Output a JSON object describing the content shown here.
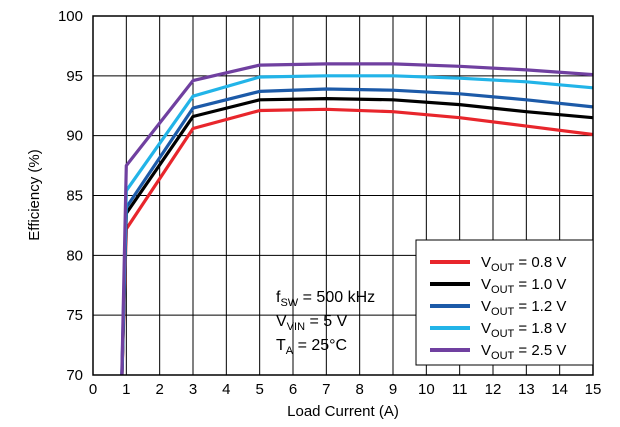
{
  "chart_data": {
    "type": "line",
    "xlabel": "Load Current (A)",
    "ylabel": "Efficiency (%)",
    "xlim": [
      0,
      15
    ],
    "ylim": [
      70,
      100
    ],
    "xticks": [
      "0",
      "1",
      "2",
      "3",
      "4",
      "5",
      "6",
      "7",
      "8",
      "9",
      "10",
      "11",
      "12",
      "13",
      "14",
      "15"
    ],
    "yticks": [
      "70",
      "75",
      "80",
      "85",
      "90",
      "95",
      "100"
    ],
    "grid": true,
    "legend_position": "bottom-right",
    "annotation": {
      "fsw": {
        "main": "f",
        "sub": "SW",
        "rest": " = 500 kHz"
      },
      "vvin": {
        "main": "V",
        "sub": "VIN",
        "rest": " = 5 V"
      },
      "ta": {
        "main": "T",
        "sub": "A",
        "rest": " = 25°C"
      }
    },
    "series": [
      {
        "name": "VOUT = 0.8 V",
        "label_main": "V",
        "label_sub": "OUT",
        "label_rest": " = 0.8 V",
        "color": "#e8262c",
        "x": [
          0.85,
          1,
          3,
          5,
          7,
          9,
          11,
          13,
          15
        ],
        "y": [
          68,
          82.2,
          90.6,
          92.1,
          92.2,
          92.0,
          91.5,
          90.8,
          90.1
        ]
      },
      {
        "name": "VOUT = 1.0 V",
        "label_main": "V",
        "label_sub": "OUT",
        "label_rest": " = 1.0 V",
        "color": "#000000",
        "x": [
          0.85,
          1,
          3,
          5,
          7,
          9,
          11,
          13,
          15
        ],
        "y": [
          68,
          83.5,
          91.6,
          93.0,
          93.1,
          93.0,
          92.6,
          92.0,
          91.5
        ]
      },
      {
        "name": "VOUT = 1.2 V",
        "label_main": "V",
        "label_sub": "OUT",
        "label_rest": " = 1.2 V",
        "color": "#1c5aa8",
        "x": [
          0.85,
          1,
          3,
          5,
          7,
          9,
          11,
          13,
          15
        ],
        "y": [
          68,
          84.0,
          92.3,
          93.7,
          93.9,
          93.8,
          93.5,
          93.0,
          92.4
        ]
      },
      {
        "name": "VOUT = 1.8 V",
        "label_main": "V",
        "label_sub": "OUT",
        "label_rest": " = 1.8 V",
        "color": "#22b4e8",
        "x": [
          0.85,
          1,
          3,
          5,
          7,
          9,
          11,
          13,
          15
        ],
        "y": [
          68,
          85.4,
          93.3,
          94.9,
          95.0,
          95.0,
          94.8,
          94.5,
          94.0
        ]
      },
      {
        "name": "VOUT = 2.5 V",
        "label_main": "V",
        "label_sub": "OUT",
        "label_rest": " = 2.5 V",
        "color": "#7040a0",
        "x": [
          0.85,
          1,
          3,
          5,
          7,
          9,
          11,
          13,
          15
        ],
        "y": [
          68,
          87.5,
          94.6,
          95.9,
          96.0,
          96.0,
          95.8,
          95.5,
          95.1
        ]
      }
    ]
  }
}
